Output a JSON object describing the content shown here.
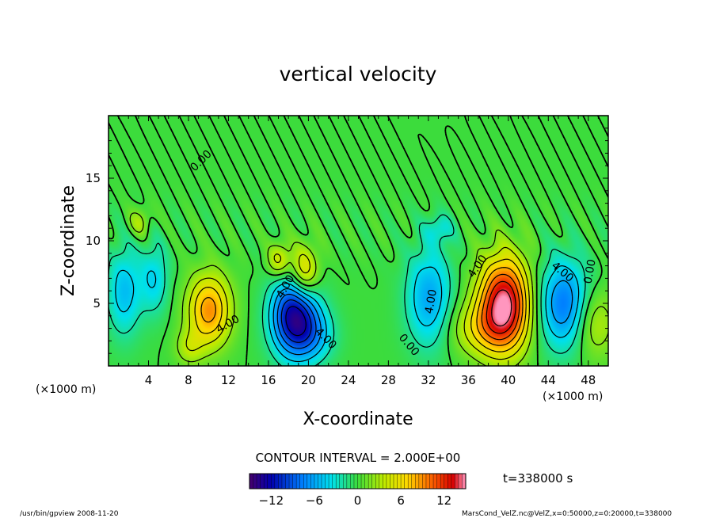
{
  "chart_data": {
    "type": "heatmap",
    "title": "vertical velocity",
    "xlabel": "X-coordinate",
    "ylabel": "Z-coordinate",
    "x_unit_left": "(×1000 m)",
    "x_unit_right": "(×1000 m)",
    "xlim": [
      0,
      50
    ],
    "ylim": [
      0,
      20
    ],
    "x_ticks": [
      4,
      8,
      12,
      16,
      20,
      24,
      28,
      32,
      36,
      40,
      44,
      48
    ],
    "y_ticks": [
      5,
      10,
      15
    ],
    "contour_interval_label": "CONTOUR INTERVAL = 2.000E+00",
    "time_label": "t=338000 s",
    "colorbar": {
      "min": -15,
      "max": 15,
      "ticks": [
        -12,
        -6,
        0,
        6,
        12
      ]
    },
    "contour_labels": [
      {
        "text": "0.00",
        "x": 9.5,
        "y": 16.2,
        "rotate": -45
      },
      {
        "text": "4.00",
        "x": 12.1,
        "y": 3.1,
        "rotate": -30
      },
      {
        "text": "4.00",
        "x": 21.5,
        "y": 2.0,
        "rotate": 45
      },
      {
        "text": "4.00",
        "x": 18.0,
        "y": 6.2,
        "rotate": -60
      },
      {
        "text": "4.00",
        "x": 32.6,
        "y": 5.1,
        "rotate": -80
      },
      {
        "text": "4.00",
        "x": 37.2,
        "y": 7.8,
        "rotate": -55
      },
      {
        "text": "4.00",
        "x": 45.2,
        "y": 7.3,
        "rotate": 40
      },
      {
        "text": "0.00",
        "x": 29.8,
        "y": 1.5,
        "rotate": 50
      },
      {
        "text": "0.00",
        "x": 48.5,
        "y": 7.5,
        "rotate": -80
      }
    ],
    "features": [
      {
        "x": 10.0,
        "y": 4.5,
        "sx": 1.5,
        "sy": 2.0,
        "amp": 9
      },
      {
        "x": 18.5,
        "y": 4.0,
        "sx": 1.6,
        "sy": 2.2,
        "amp": -13
      },
      {
        "x": 20.5,
        "y": 2.5,
        "sx": 1.5,
        "sy": 1.5,
        "amp": -4
      },
      {
        "x": 19.5,
        "y": 7.5,
        "sx": 1.0,
        "sy": 1.5,
        "amp": 7
      },
      {
        "x": 17.0,
        "y": 8.5,
        "sx": 0.8,
        "sy": 1.0,
        "amp": 5
      },
      {
        "x": 32.0,
        "y": 5.5,
        "sx": 1.6,
        "sy": 2.8,
        "amp": -6
      },
      {
        "x": 39.5,
        "y": 5.0,
        "sx": 1.8,
        "sy": 2.6,
        "amp": 15
      },
      {
        "x": 37.0,
        "y": 3.0,
        "sx": 2.2,
        "sy": 1.5,
        "amp": 4
      },
      {
        "x": 45.5,
        "y": 5.0,
        "sx": 1.8,
        "sy": 2.5,
        "amp": -8
      },
      {
        "x": 1.5,
        "y": 6.0,
        "sx": 1.2,
        "sy": 2.5,
        "amp": -5
      },
      {
        "x": 4.5,
        "y": 7.0,
        "sx": 1.0,
        "sy": 2.0,
        "amp": -4
      },
      {
        "x": 8.0,
        "y": 1.5,
        "sx": 1.0,
        "sy": 1.0,
        "amp": 3
      },
      {
        "x": 48.5,
        "y": 3.5,
        "sx": 1.5,
        "sy": 2.0,
        "amp": 4
      },
      {
        "x": 3.0,
        "y": 11.5,
        "sx": 0.8,
        "sy": 0.8,
        "amp": 3
      },
      {
        "x": 33.0,
        "y": 11.0,
        "sx": 1.0,
        "sy": 0.8,
        "amp": -3
      }
    ]
  },
  "footer": {
    "left": "/usr/bin/gpview  2008-11-20",
    "right": "MarsCond_VelZ.nc@VelZ,x=0:50000,z=0:20000,t=338000"
  }
}
